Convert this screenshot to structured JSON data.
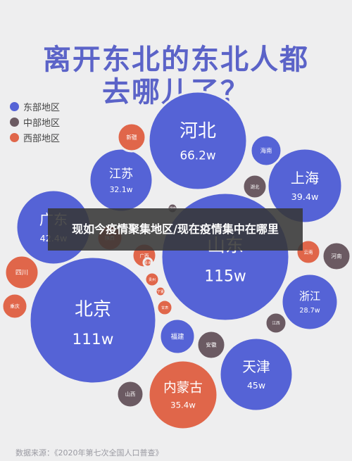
{
  "title": {
    "line1": "离开东北的东北人都",
    "line2": "去哪儿了？"
  },
  "legend": [
    {
      "label": "东部地区",
      "color": "#5563d6"
    },
    {
      "label": "中部地区",
      "color": "#6b5a62"
    },
    {
      "label": "西部地区",
      "color": "#e0664a"
    }
  ],
  "overlay_caption": "现如今疫情聚集地区/现在疫情集中在哪里",
  "source": "数据来源：《2020年第七次全国人口普查》",
  "chart_data": {
    "type": "bubble",
    "title": "离开东北的东北人都去哪儿了？",
    "bubbles": [
      {
        "name": "山东",
        "value": "115w",
        "region": "东部地区"
      },
      {
        "name": "北京",
        "value": "111w",
        "region": "东部地区"
      },
      {
        "name": "河北",
        "value": "66.2w",
        "region": "东部地区"
      },
      {
        "name": "天津",
        "value": "45w",
        "region": "东部地区"
      },
      {
        "name": "广东",
        "value": "42.4w",
        "region": "东部地区"
      },
      {
        "name": "上海",
        "value": "39.4w",
        "region": "东部地区"
      },
      {
        "name": "内蒙古",
        "value": "35.4w",
        "region": "西部地区"
      },
      {
        "name": "江苏",
        "value": "32.1w",
        "region": "东部地区"
      },
      {
        "name": "浙江",
        "value": "28.7w",
        "region": "东部地区"
      },
      {
        "name": "福建",
        "value": "",
        "region": "东部地区"
      },
      {
        "name": "海南",
        "value": "",
        "region": "东部地区"
      },
      {
        "name": "安徽",
        "value": "",
        "region": "中部地区"
      },
      {
        "name": "湖北",
        "value": "",
        "region": "中部地区"
      },
      {
        "name": "河南",
        "value": "",
        "region": "中部地区"
      },
      {
        "name": "江西",
        "value": "",
        "region": "中部地区"
      },
      {
        "name": "山西",
        "value": "",
        "region": "中部地区"
      },
      {
        "name": "湖南",
        "value": "",
        "region": "中部地区"
      },
      {
        "name": "新疆",
        "value": "",
        "region": "西部地区"
      },
      {
        "name": "陕西",
        "value": "",
        "region": "西部地区"
      },
      {
        "name": "四川",
        "value": "",
        "region": "西部地区"
      },
      {
        "name": "重庆",
        "value": "",
        "region": "西部地区"
      },
      {
        "name": "广西",
        "value": "",
        "region": "西部地区"
      },
      {
        "name": "云南",
        "value": "",
        "region": "西部地区"
      },
      {
        "name": "贵州",
        "value": "",
        "region": "西部地区"
      },
      {
        "name": "宁夏",
        "value": "",
        "region": "西部地区"
      },
      {
        "name": "甘肃",
        "value": "",
        "region": "西部地区"
      },
      {
        "name": "青海",
        "value": "",
        "region": "西部地区"
      }
    ]
  }
}
